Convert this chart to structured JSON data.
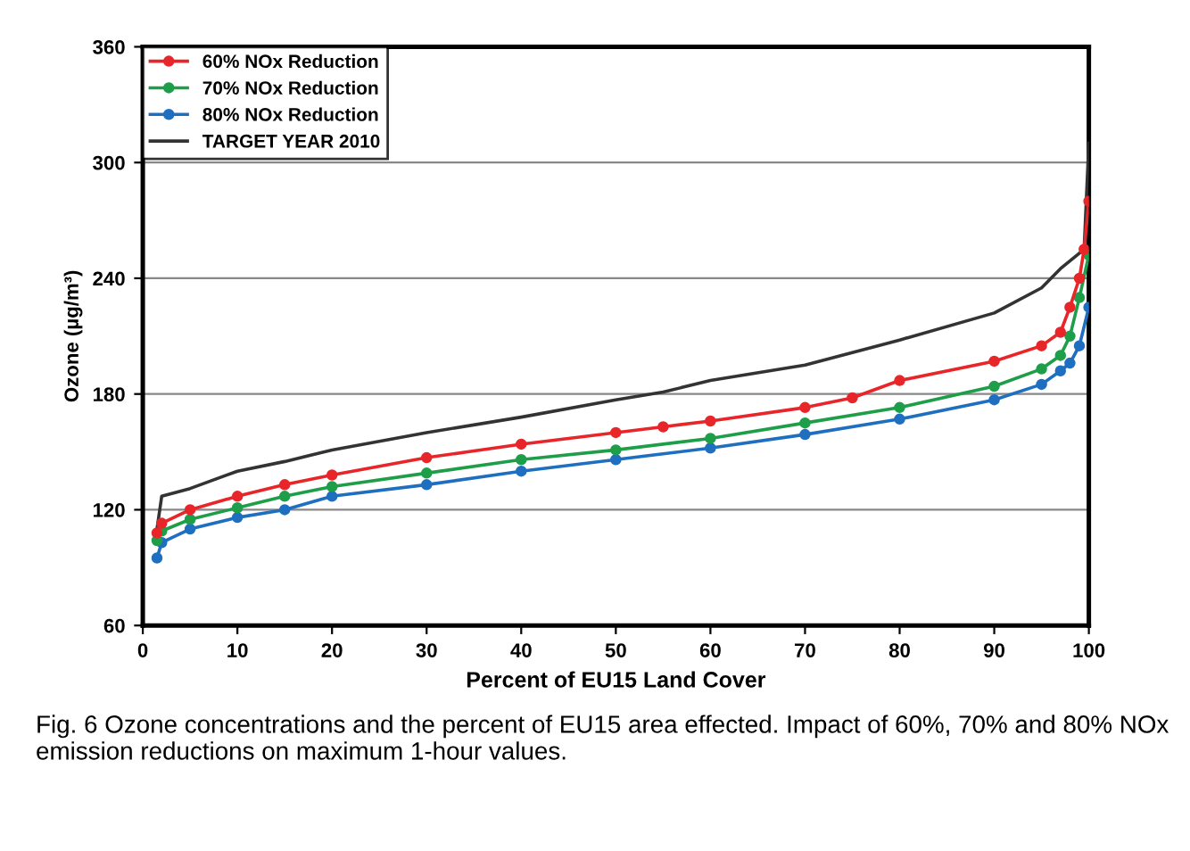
{
  "chart_data": {
    "type": "line",
    "xlabel": "Percent of EU15 Land Cover",
    "ylabel": "Ozone (µg/m³)",
    "xlim": [
      0,
      100
    ],
    "xticks": [
      0,
      10,
      20,
      30,
      40,
      50,
      60,
      70,
      80,
      90,
      100
    ],
    "ylim": [
      60,
      360
    ],
    "yticks": [
      60,
      120,
      180,
      240,
      300,
      360
    ],
    "grid": "y",
    "legend": "top left",
    "series": [
      {
        "name": "60% NOx Reduction",
        "color": "#e8262a",
        "marker": "circle",
        "x": [
          1.5,
          2,
          5,
          10,
          15,
          20,
          30,
          40,
          50,
          55,
          60,
          70,
          75,
          80,
          90,
          95,
          97,
          98,
          99,
          99.5,
          100
        ],
        "values": [
          108,
          113,
          120,
          127,
          133,
          138,
          147,
          154,
          160,
          163,
          166,
          173,
          178,
          187,
          197,
          205,
          212,
          225,
          240,
          255,
          280
        ]
      },
      {
        "name": "70% NOx Reduction",
        "color": "#1e9e48",
        "marker": "circle",
        "x": [
          1.5,
          2,
          5,
          10,
          15,
          20,
          30,
          40,
          50,
          60,
          70,
          80,
          90,
          95,
          97,
          98,
          99,
          100
        ],
        "values": [
          104,
          109,
          115,
          121,
          127,
          132,
          139,
          146,
          151,
          157,
          165,
          173,
          184,
          193,
          200,
          210,
          230,
          252
        ]
      },
      {
        "name": "80% NOx Reduction",
        "color": "#1f6fc1",
        "marker": "circle",
        "x": [
          1.5,
          2,
          5,
          10,
          15,
          20,
          30,
          40,
          50,
          60,
          70,
          80,
          90,
          95,
          97,
          98,
          99,
          100
        ],
        "values": [
          95,
          103,
          110,
          116,
          120,
          127,
          133,
          140,
          146,
          152,
          159,
          167,
          177,
          185,
          192,
          196,
          205,
          225
        ]
      },
      {
        "name": "TARGET YEAR 2010",
        "color": "#333333",
        "marker": "none",
        "x": [
          1.5,
          2,
          5,
          10,
          15,
          20,
          30,
          40,
          50,
          55,
          60,
          70,
          80,
          90,
          95,
          97,
          99,
          99.5,
          100
        ],
        "values": [
          110,
          127,
          131,
          140,
          145,
          151,
          160,
          168,
          177,
          181,
          187,
          195,
          208,
          222,
          235,
          245,
          253,
          255,
          310
        ]
      }
    ],
    "annotations": [
      "Fig. 6 Ozone concentrations and the percent of EU15 area effected. Impact of 60%, 70% and 80% NOx emission reductions on maximum 1-hour values."
    ]
  }
}
